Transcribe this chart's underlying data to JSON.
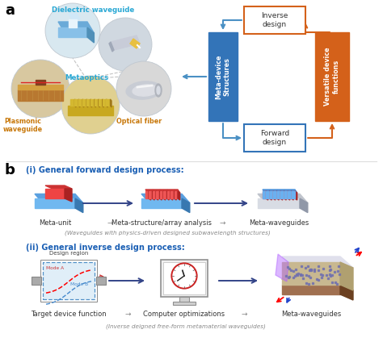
{
  "fig_width": 4.74,
  "fig_height": 4.24,
  "dpi": 100,
  "bg_color": "#ffffff",
  "panel_a_label": "a",
  "panel_b_label": "b",
  "label_fontsize": 11,
  "label_color": "#000000",
  "cyan_color": "#29a8d4",
  "orange_label_color": "#c8780a",
  "dielectric_label": "Dielectric waveguide",
  "metaoptics_label": "Metaoptics",
  "plasmonic_label": "Plasmonic\nwaveguide",
  "optical_fiber_label": "Optical fiber",
  "inverse_design_label": "Inverse\ndesign",
  "forward_design_label": "Forward\ndesign",
  "meta_device_label": "Meta-device\nStructures",
  "versatile_device_label": "Versatile device\nfunctions",
  "box_blue_color": "#3374b8",
  "box_orange_color": "#d4611a",
  "box_outline_blue": "#3374b8",
  "box_outline_orange": "#d4611a",
  "arrow_blue": "#4a90c4",
  "forward_title": "(i) General forward design process:",
  "inverse_title": "(ii) General inverse design process:",
  "meta_unit_label": "Meta-unit",
  "meta_structure_label": "Meta-structure/array analysis",
  "meta_waveguides_label": "Meta-waveguides",
  "forward_subtitle": "(Waveguides with physics-driven designed subwavelength structures)",
  "target_device_label": "Target device function",
  "computer_opt_label": "Computer optimizations",
  "meta_waveguides2_label": "Meta-waveguides",
  "inverse_subtitle": "(Inverse deigned free-form metamaterial waveguides)",
  "design_region_label": "Design region",
  "mode_a_label": "Mode A",
  "mode_b_label": "Mode B",
  "text_color_gray": "#888888",
  "text_color_black": "#333333",
  "arrow_label_color": "#888888"
}
